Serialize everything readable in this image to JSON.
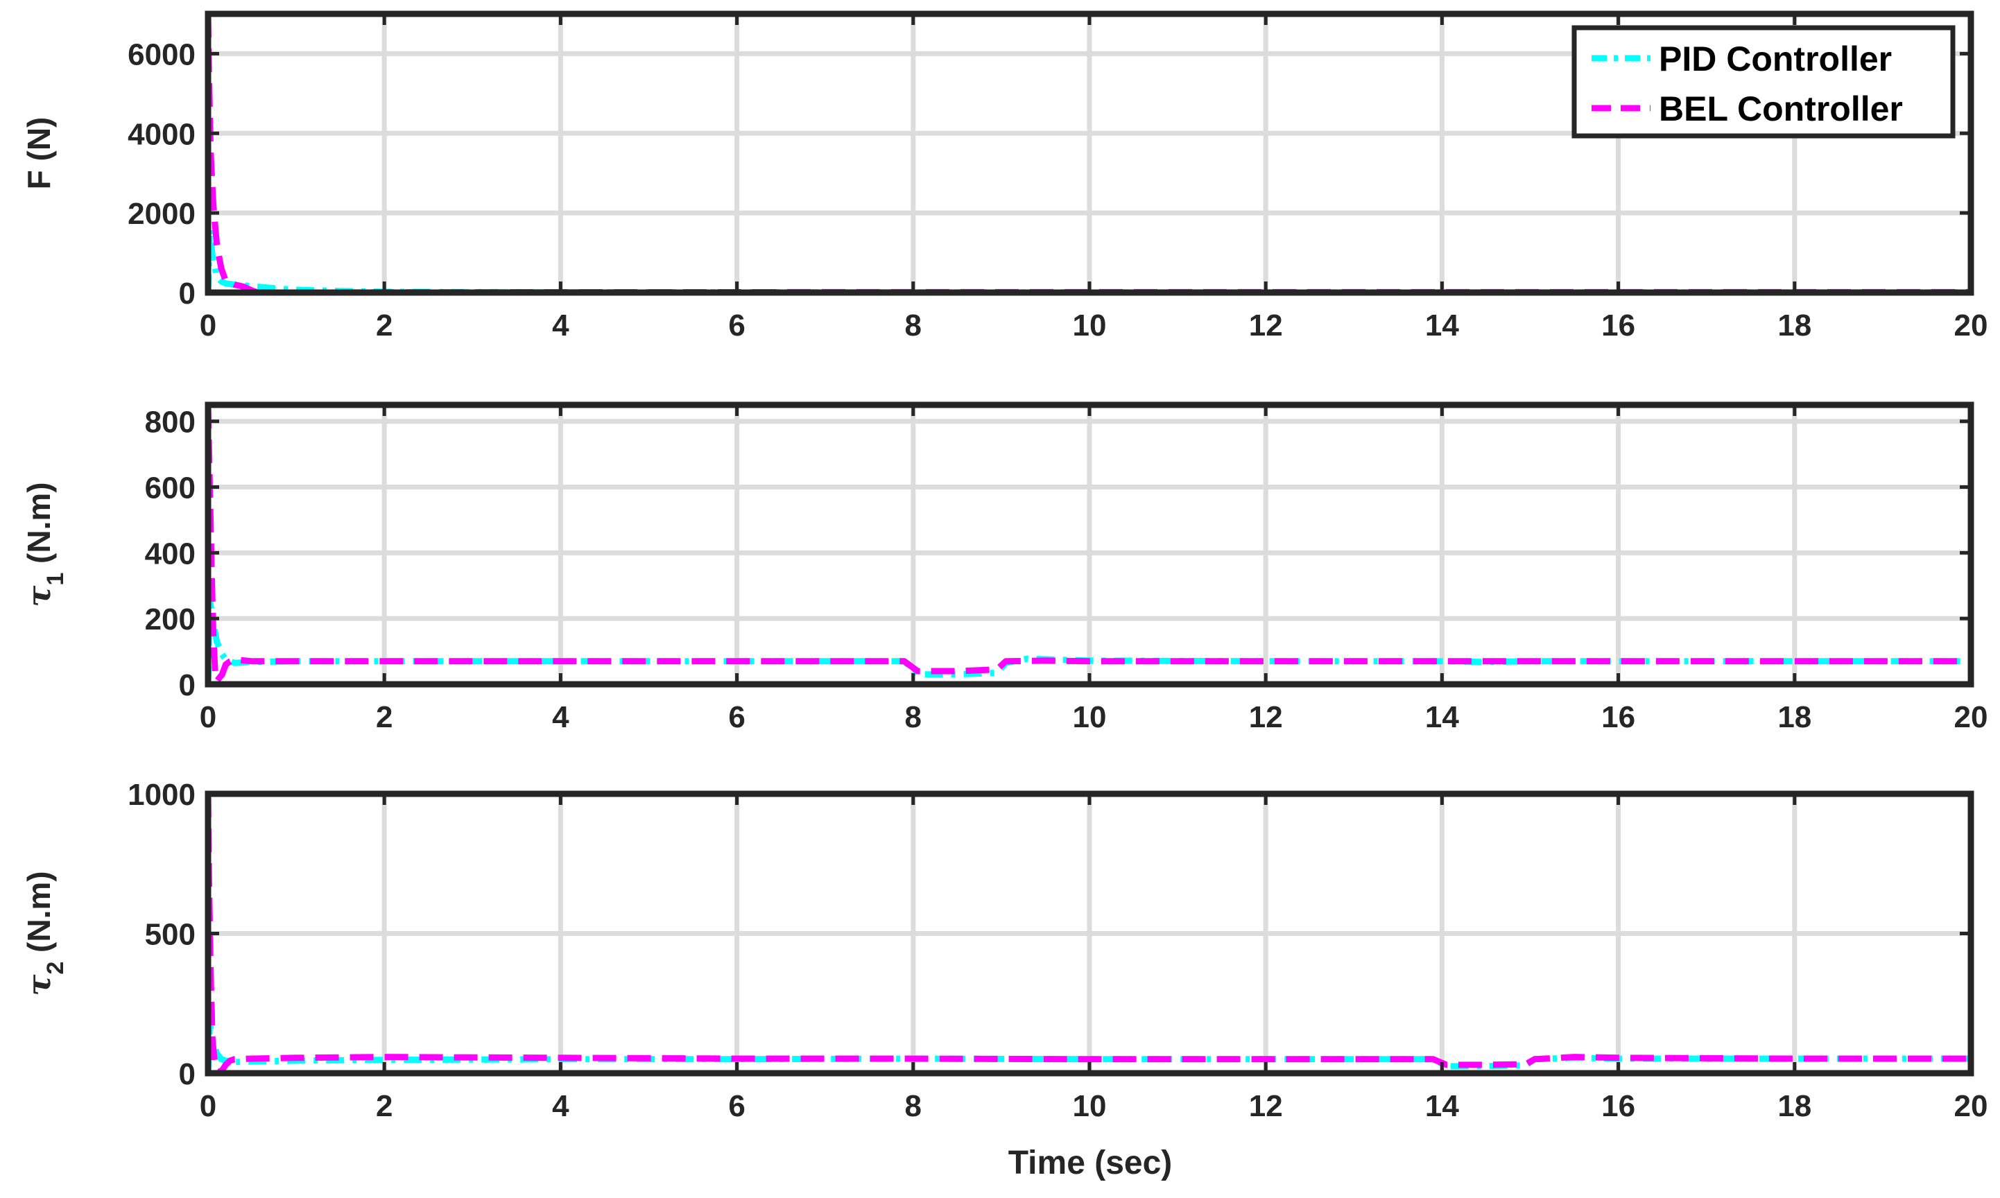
{
  "chart_data": [
    {
      "type": "line",
      "ylabel": "F (N)",
      "xlim": [
        0,
        20
      ],
      "ylim": [
        0,
        7000
      ],
      "xticks": [
        0,
        2,
        4,
        6,
        8,
        10,
        12,
        14,
        16,
        18,
        20
      ],
      "yticks": [
        0,
        2000,
        4000,
        6000
      ],
      "grid": true,
      "legend": "top-right",
      "series": [
        {
          "name": "PID Controller",
          "color": "#00ffff",
          "style": "dash-dot",
          "x": [
            0,
            0.02,
            0.05,
            0.1,
            0.15,
            0.2,
            0.3,
            0.5,
            0.8,
            1.0,
            1.5,
            2.0,
            3.0,
            5.0,
            8.0,
            10.0,
            14.0,
            20.0
          ],
          "y": [
            0,
            1600,
            900,
            400,
            280,
            230,
            200,
            160,
            100,
            70,
            40,
            20,
            10,
            8,
            5,
            5,
            5,
            5
          ]
        },
        {
          "name": "BEL Controller",
          "color": "#ff00ff",
          "style": "dashed",
          "x": [
            0,
            0.01,
            0.03,
            0.06,
            0.1,
            0.15,
            0.2,
            0.3,
            0.4,
            0.5,
            0.6,
            0.8,
            1.0,
            1.5,
            2.0,
            4.0,
            8.0,
            10.0,
            14.0,
            20.0
          ],
          "y": [
            7000,
            5500,
            3500,
            2200,
            1200,
            600,
            300,
            200,
            150,
            50,
            -30,
            -20,
            -10,
            0,
            5,
            8,
            10,
            10,
            10,
            10
          ]
        }
      ]
    },
    {
      "type": "line",
      "ylabel": "τ",
      "ylabel_subscript": "1",
      "ylabel_suffix": " (N.m)",
      "xlim": [
        0,
        20
      ],
      "ylim": [
        0,
        850
      ],
      "xticks": [
        0,
        2,
        4,
        6,
        8,
        10,
        12,
        14,
        16,
        18,
        20
      ],
      "yticks": [
        0,
        200,
        400,
        600,
        800
      ],
      "grid": true,
      "series": [
        {
          "name": "PID Controller",
          "color": "#00ffff",
          "style": "dash-dot",
          "x": [
            0,
            0.02,
            0.05,
            0.1,
            0.15,
            0.2,
            0.3,
            0.5,
            1.0,
            2.0,
            4.0,
            6.0,
            7.9,
            8.05,
            8.5,
            8.95,
            9.05,
            9.3,
            9.6,
            10.0,
            12.0,
            14.0,
            14.5,
            15.0,
            16.0,
            18.0,
            20.0
          ],
          "y": [
            0,
            260,
            200,
            130,
            95,
            75,
            65,
            68,
            70,
            70,
            70,
            70,
            70,
            30,
            30,
            35,
            65,
            78,
            75,
            72,
            70,
            70,
            68,
            70,
            70,
            70,
            70
          ]
        },
        {
          "name": "BEL Controller",
          "color": "#ff00ff",
          "style": "dashed",
          "x": [
            0,
            0.02,
            0.04,
            0.06,
            0.08,
            0.1,
            0.13,
            0.16,
            0.2,
            0.25,
            0.3,
            0.5,
            1.0,
            2.0,
            4.0,
            6.0,
            7.9,
            8.05,
            8.5,
            8.95,
            9.05,
            9.5,
            10.0,
            12.0,
            14.0,
            16.0,
            18.0,
            20.0
          ],
          "y": [
            850,
            600,
            350,
            150,
            40,
            10,
            20,
            30,
            60,
            70,
            75,
            70,
            70,
            70,
            70,
            70,
            70,
            40,
            40,
            45,
            70,
            72,
            70,
            70,
            70,
            70,
            70,
            70
          ]
        }
      ]
    },
    {
      "type": "line",
      "ylabel": "τ",
      "ylabel_subscript": "2",
      "ylabel_suffix": " (N.m)",
      "xlabel": "Time (sec)",
      "xlim": [
        0,
        20
      ],
      "ylim": [
        0,
        1000
      ],
      "xticks": [
        0,
        2,
        4,
        6,
        8,
        10,
        12,
        14,
        16,
        18,
        20
      ],
      "yticks": [
        0,
        500,
        1000
      ],
      "grid": true,
      "series": [
        {
          "name": "PID Controller",
          "color": "#00ffff",
          "style": "dash-dot",
          "x": [
            0,
            0.02,
            0.05,
            0.1,
            0.15,
            0.2,
            0.3,
            0.5,
            1.0,
            2.0,
            4.0,
            6.0,
            8.0,
            10.0,
            12.0,
            13.9,
            14.05,
            14.5,
            14.95,
            15.05,
            15.5,
            16.0,
            18.0,
            20.0
          ],
          "y": [
            0,
            180,
            120,
            70,
            50,
            45,
            40,
            42,
            45,
            48,
            50,
            50,
            52,
            50,
            50,
            50,
            25,
            25,
            28,
            50,
            55,
            52,
            52,
            52
          ]
        },
        {
          "name": "BEL Controller",
          "color": "#ff00ff",
          "style": "dashed",
          "x": [
            0,
            0.01,
            0.03,
            0.05,
            0.08,
            0.12,
            0.16,
            0.2,
            0.25,
            0.3,
            0.5,
            1.0,
            2.0,
            4.0,
            6.0,
            8.0,
            10.0,
            12.0,
            13.9,
            14.05,
            14.5,
            14.95,
            15.05,
            15.5,
            16.0,
            18.0,
            20.0
          ],
          "y": [
            1000,
            700,
            350,
            120,
            20,
            5,
            10,
            30,
            45,
            50,
            52,
            55,
            58,
            55,
            52,
            52,
            50,
            50,
            50,
            30,
            30,
            32,
            50,
            58,
            55,
            52,
            52
          ]
        }
      ]
    }
  ]
}
